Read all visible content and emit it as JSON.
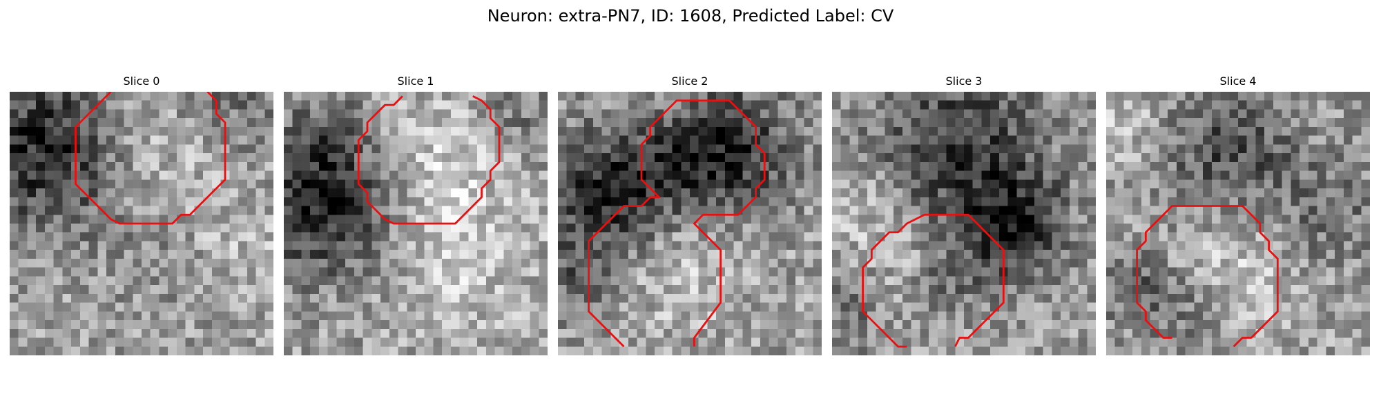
{
  "figure": {
    "title": "Neuron: extra-PN7, ID: 1608, Predicted Label: CV"
  },
  "panels": [
    {
      "title": "Slice 0",
      "seed": 11,
      "darkBlobs": [
        [
          4,
          6,
          6.5,
          0.9
        ],
        [
          24,
          0,
          5,
          0.35
        ],
        [
          18,
          18,
          4,
          0.25
        ]
      ],
      "brightBlobs": [
        [
          15,
          5,
          6,
          0.3
        ],
        [
          24,
          17,
          5,
          0.2
        ]
      ],
      "contour": [
        [
          11.5,
          0
        ],
        [
          7.5,
          4
        ],
        [
          7.5,
          10.5
        ],
        [
          8.5,
          11.5
        ],
        [
          9.5,
          12.5
        ],
        [
          10.5,
          13.5
        ],
        [
          11.5,
          14.5
        ],
        [
          12.5,
          15
        ],
        [
          18.5,
          15
        ],
        [
          19.5,
          14
        ],
        [
          20.5,
          14
        ],
        [
          24.5,
          10
        ],
        [
          24.5,
          3.5
        ],
        [
          23.5,
          2.5
        ],
        [
          23.5,
          1
        ],
        [
          22.5,
          0
        ]
      ]
    },
    {
      "seed": 29,
      "title": "Slice 1",
      "darkBlobs": [
        [
          4,
          12,
          5.5,
          0.95
        ],
        [
          26,
          2,
          3,
          0.3
        ],
        [
          4,
          4,
          3,
          0.3
        ]
      ],
      "brightBlobs": [
        [
          17,
          8,
          6,
          0.3
        ],
        [
          20,
          20,
          6,
          0.25
        ]
      ],
      "contour": [
        [
          13.5,
          0.5
        ],
        [
          12.5,
          1.5
        ],
        [
          11.5,
          1.5
        ],
        [
          10.5,
          2.5
        ],
        [
          9.5,
          3.5
        ],
        [
          9.5,
          4.5
        ],
        [
          8.5,
          5.5
        ],
        [
          8.5,
          10.5
        ],
        [
          9.5,
          11.5
        ],
        [
          9.5,
          12.5
        ],
        [
          10.5,
          13.5
        ],
        [
          11.5,
          14.5
        ],
        [
          12.5,
          15
        ],
        [
          19.5,
          15
        ],
        [
          22.5,
          12
        ],
        [
          22.5,
          11
        ],
        [
          23.5,
          10
        ],
        [
          23.5,
          9
        ],
        [
          24.5,
          8
        ],
        [
          24.5,
          4
        ],
        [
          23.5,
          3
        ],
        [
          23.5,
          2
        ],
        [
          22.5,
          1
        ],
        [
          21.5,
          0.5
        ]
      ]
    },
    {
      "title": "Slice 2",
      "seed": 47,
      "darkBlobs": [
        [
          5,
          11,
          5,
          0.9
        ],
        [
          19,
          6,
          5,
          0.85
        ],
        [
          13,
          8,
          3,
          0.4
        ],
        [
          2,
          21,
          3,
          0.4
        ]
      ],
      "brightBlobs": [
        [
          14,
          20,
          5,
          0.25
        ]
      ],
      "contour": [
        [
          7.5,
          29
        ],
        [
          3.5,
          25
        ],
        [
          3.5,
          17
        ],
        [
          7.5,
          13
        ],
        [
          9.5,
          13
        ],
        [
          10.5,
          12
        ],
        [
          11.5,
          12
        ],
        [
          10.5,
          11
        ],
        [
          9.5,
          10
        ],
        [
          9.5,
          6
        ],
        [
          10.5,
          5
        ],
        [
          10.5,
          4
        ],
        [
          13.5,
          1
        ],
        [
          19.5,
          1
        ],
        [
          20.5,
          2
        ],
        [
          21.5,
          3
        ],
        [
          22.5,
          4
        ],
        [
          22.5,
          6
        ],
        [
          23.5,
          7
        ],
        [
          23.5,
          10
        ],
        [
          22.5,
          11
        ],
        [
          22.5,
          12
        ],
        [
          20.5,
          14
        ],
        [
          16.5,
          14
        ],
        [
          15.5,
          15
        ],
        [
          17.5,
          17
        ],
        [
          18.5,
          18
        ],
        [
          18.5,
          24
        ],
        [
          15.5,
          28
        ],
        [
          15.5,
          29
        ]
      ]
    },
    {
      "title": "Slice 3",
      "seed": 83,
      "darkBlobs": [
        [
          14,
          6,
          7,
          0.7
        ],
        [
          20,
          15,
          4,
          0.8
        ],
        [
          2,
          24,
          4,
          0.3
        ],
        [
          12,
          21,
          3,
          0.5
        ]
      ],
      "brightBlobs": [
        [
          9,
          20,
          4,
          0.3
        ],
        [
          3,
          13,
          4,
          0.25
        ]
      ],
      "contour": [
        [
          8.5,
          29
        ],
        [
          7.5,
          29
        ],
        [
          6.5,
          28
        ],
        [
          5.5,
          27
        ],
        [
          4.5,
          26
        ],
        [
          3.5,
          25
        ],
        [
          3.5,
          20
        ],
        [
          4.5,
          19
        ],
        [
          4.5,
          18
        ],
        [
          5.5,
          17
        ],
        [
          6.5,
          16
        ],
        [
          7.5,
          16
        ],
        [
          8.5,
          15
        ],
        [
          10.5,
          14
        ],
        [
          15.5,
          14
        ],
        [
          16.5,
          15
        ],
        [
          17.5,
          16
        ],
        [
          18.5,
          17
        ],
        [
          19.5,
          18
        ],
        [
          19.5,
          24
        ],
        [
          18.5,
          25
        ],
        [
          17.5,
          26
        ],
        [
          16.5,
          27
        ],
        [
          15.5,
          28
        ],
        [
          14.5,
          28
        ],
        [
          14,
          29
        ]
      ]
    },
    {
      "title": "Slice 4",
      "seed": 97,
      "darkBlobs": [
        [
          13,
          6,
          5,
          0.6
        ],
        [
          24,
          13,
          5,
          0.35
        ],
        [
          3,
          22,
          3,
          0.45
        ],
        [
          10,
          25,
          3,
          0.35
        ]
      ],
      "brightBlobs": [
        [
          15,
          20,
          5,
          0.3
        ],
        [
          2,
          3,
          3,
          0.25
        ]
      ],
      "contour": [
        [
          7.5,
          28
        ],
        [
          6.5,
          28
        ],
        [
          5.5,
          27
        ],
        [
          4.5,
          26
        ],
        [
          4.5,
          25
        ],
        [
          3.5,
          24
        ],
        [
          3.5,
          18
        ],
        [
          4.5,
          17
        ],
        [
          4.5,
          16
        ],
        [
          7.5,
          13
        ],
        [
          8.5,
          13
        ],
        [
          8.5,
          13
        ],
        [
          15.5,
          13
        ],
        [
          16.5,
          14
        ],
        [
          17.5,
          15
        ],
        [
          17.5,
          16
        ],
        [
          18.5,
          17
        ],
        [
          18.5,
          18
        ],
        [
          19.5,
          19
        ],
        [
          19.5,
          25
        ],
        [
          16.5,
          28
        ],
        [
          15.5,
          28
        ],
        [
          14.5,
          29
        ]
      ]
    }
  ]
}
